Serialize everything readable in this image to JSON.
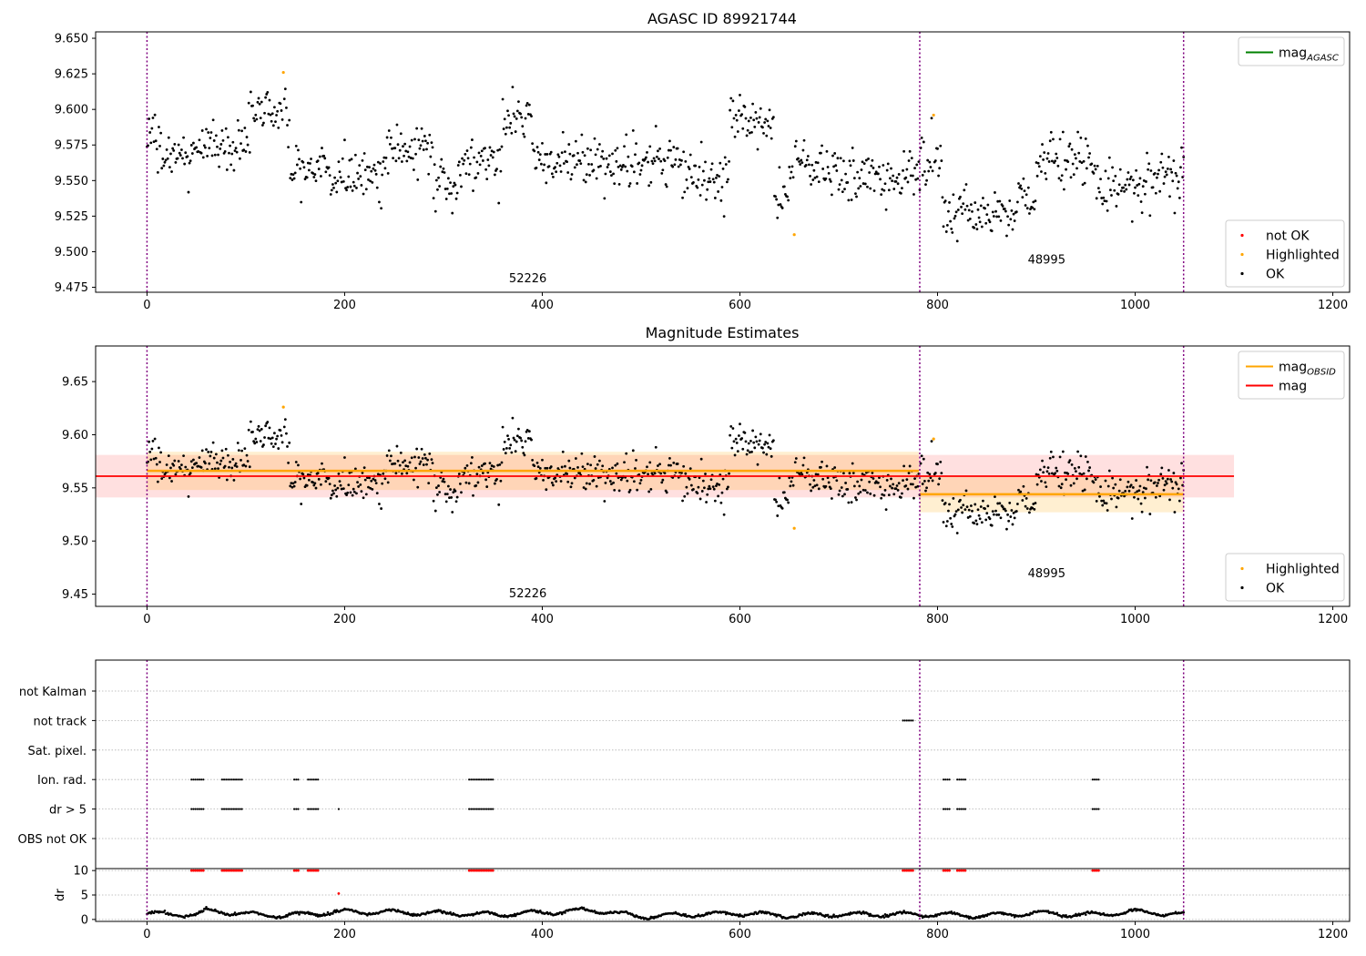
{
  "figure": {
    "obsid_boundaries_x": [
      0,
      782,
      1049
    ]
  },
  "chart_data": [
    {
      "type": "scatter",
      "title": "AGASC ID 89921744",
      "xlabel": "",
      "ylabel": "",
      "xlim": [
        -52,
        1217
      ],
      "ylim": [
        9.4715,
        9.6545
      ],
      "xticks": [
        0,
        200,
        400,
        600,
        800,
        1000,
        1200
      ],
      "yticks": [
        9.475,
        9.5,
        9.525,
        9.55,
        9.575,
        9.6,
        9.625,
        9.65
      ],
      "ytick_decimals": 3,
      "legends": [
        {
          "position": "top-right",
          "entries": [
            {
              "label": "mag",
              "sub": "AGASC",
              "kind": "line",
              "color": "#008000"
            }
          ]
        },
        {
          "position": "bottom-right",
          "entries": [
            {
              "label": "not OK",
              "kind": "dot",
              "color": "#ff0000"
            },
            {
              "label": "Highlighted",
              "kind": "dot",
              "color": "#ffa500"
            },
            {
              "label": "OK",
              "kind": "dot",
              "color": "#000000"
            }
          ]
        }
      ],
      "annotations": [
        {
          "text": "52226",
          "x": 390,
          "y": 9.4785
        },
        {
          "text": "48995",
          "x": 915,
          "y": 9.4915
        }
      ],
      "obsids": [
        {
          "label": "52226",
          "start": 0,
          "end": 781,
          "segments": [
            {
              "x0": 0,
              "x1": 10,
              "mean": 9.58
            },
            {
              "x0": 10,
              "x1": 55,
              "mean": 9.568
            },
            {
              "x0": 55,
              "x1": 105,
              "mean": 9.575
            },
            {
              "x0": 105,
              "x1": 145,
              "mean": 9.598
            },
            {
              "x0": 145,
              "x1": 185,
              "mean": 9.558
            },
            {
              "x0": 185,
              "x1": 240,
              "mean": 9.553
            },
            {
              "x0": 240,
              "x1": 290,
              "mean": 9.572
            },
            {
              "x0": 290,
              "x1": 320,
              "mean": 9.547
            },
            {
              "x0": 320,
              "x1": 360,
              "mean": 9.563
            },
            {
              "x0": 360,
              "x1": 390,
              "mean": 9.593
            },
            {
              "x0": 390,
              "x1": 460,
              "mean": 9.563
            },
            {
              "x0": 460,
              "x1": 510,
              "mean": 9.562
            },
            {
              "x0": 510,
              "x1": 550,
              "mean": 9.562
            },
            {
              "x0": 550,
              "x1": 590,
              "mean": 9.553
            },
            {
              "x0": 590,
              "x1": 635,
              "mean": 9.59
            },
            {
              "x0": 635,
              "x1": 650,
              "mean": 9.535
            },
            {
              "x0": 650,
              "x1": 700,
              "mean": 9.562
            },
            {
              "x0": 700,
              "x1": 781,
              "mean": 9.552
            }
          ]
        },
        {
          "label": "48995",
          "start": 782,
          "end": 1049,
          "segments": [
            {
              "x0": 782,
              "x1": 805,
              "mean": 9.562
            },
            {
              "x0": 805,
              "x1": 880,
              "mean": 9.528
            },
            {
              "x0": 880,
              "x1": 900,
              "mean": 9.538
            },
            {
              "x0": 900,
              "x1": 960,
              "mean": 9.562
            },
            {
              "x0": 960,
              "x1": 1010,
              "mean": 9.545
            },
            {
              "x0": 1010,
              "x1": 1049,
              "mean": 9.55
            }
          ]
        }
      ],
      "highlighted_points": [
        {
          "x": 138,
          "y": 9.626
        },
        {
          "x": 655,
          "y": 9.512
        },
        {
          "x": 796,
          "y": 9.596
        }
      ]
    },
    {
      "type": "scatter",
      "title": "Magnitude Estimates",
      "xlabel": "",
      "ylabel": "",
      "xlim": [
        -52,
        1217
      ],
      "ylim": [
        9.4385,
        9.6835
      ],
      "xticks": [
        0,
        200,
        400,
        600,
        800,
        1000,
        1200
      ],
      "yticks": [
        9.45,
        9.5,
        9.55,
        9.6,
        9.65
      ],
      "ytick_decimals": 2,
      "legends": [
        {
          "position": "top-right",
          "entries": [
            {
              "label": "mag",
              "sub": "OBSID",
              "kind": "line",
              "color": "#ffa500"
            },
            {
              "label": "mag",
              "kind": "line",
              "color": "#ff0000"
            }
          ]
        },
        {
          "position": "bottom-right",
          "entries": [
            {
              "label": "Highlighted",
              "kind": "dot",
              "color": "#ffa500"
            },
            {
              "label": "OK",
              "kind": "dot",
              "color": "#000000"
            }
          ]
        }
      ],
      "annotations": [
        {
          "text": "52226",
          "x": 390,
          "y": 9.447
        },
        {
          "text": "48995",
          "x": 915,
          "y": 9.466
        }
      ],
      "overall_mag": {
        "value": 9.561,
        "band": [
          9.541,
          9.581
        ],
        "x_range": [
          -52,
          1100
        ],
        "color": "#ff0000"
      },
      "obsid_mags": [
        {
          "x_range": [
            0,
            781
          ],
          "value": 9.566,
          "band": [
            9.548,
            9.584
          ]
        },
        {
          "x_range": [
            782,
            1049
          ],
          "value": 9.544,
          "band": [
            9.527,
            9.561
          ]
        }
      ]
    },
    {
      "type": "scatter",
      "title": "",
      "xlabel": "",
      "ylabel": "",
      "categories": [
        "not Kalman",
        "not track",
        "Sat. pixel.",
        "Ion. rad.",
        "dr > 5",
        "OBS not OK"
      ],
      "xlim": [
        -52,
        1217
      ],
      "xticks": [
        0,
        200,
        400,
        600,
        800,
        1000,
        1200
      ],
      "flag_runs": {
        "not Kalman": [],
        "not track": [
          [
            765,
            776
          ]
        ],
        "Sat. pixel.": [],
        "Ion. rad.": [
          [
            45,
            57
          ],
          [
            76,
            96
          ],
          [
            149,
            154
          ],
          [
            163,
            173
          ],
          [
            326,
            350
          ],
          [
            806,
            812
          ],
          [
            820,
            828
          ],
          [
            957,
            963
          ]
        ],
        "dr > 5": [
          [
            45,
            57
          ],
          [
            76,
            96
          ],
          [
            149,
            154
          ],
          [
            163,
            173
          ],
          [
            194,
            195
          ],
          [
            326,
            350
          ],
          [
            806,
            812
          ],
          [
            820,
            828
          ],
          [
            957,
            963
          ]
        ],
        "OBS not OK": []
      }
    },
    {
      "type": "scatter",
      "title": "",
      "xlabel": "",
      "ylabel": "dr",
      "xlim": [
        -52,
        1217
      ],
      "ylim": [
        -0.4,
        10.4
      ],
      "xticks": [
        0,
        200,
        400,
        600,
        800,
        1000,
        1200
      ],
      "yticks": [
        0,
        5,
        10
      ],
      "clipped_value": 10,
      "clipped_points_x": [
        [
          45,
          57
        ],
        [
          76,
          96
        ],
        [
          149,
          154
        ],
        [
          163,
          173
        ],
        [
          326,
          350
        ],
        [
          765,
          776
        ],
        [
          806,
          812
        ],
        [
          820,
          828
        ],
        [
          957,
          963
        ]
      ],
      "outlier_points": [
        {
          "x": 194,
          "y": 5.3
        }
      ],
      "dr_profile": [
        {
          "x": 0,
          "y": 1.2
        },
        {
          "x": 50,
          "y": 0.9
        },
        {
          "x": 60,
          "y": 1.8
        },
        {
          "x": 75,
          "y": 1.6
        },
        {
          "x": 100,
          "y": 1.1
        },
        {
          "x": 140,
          "y": 0.8
        },
        {
          "x": 200,
          "y": 1.6
        },
        {
          "x": 250,
          "y": 1.5
        },
        {
          "x": 300,
          "y": 1.2
        },
        {
          "x": 350,
          "y": 1.0
        },
        {
          "x": 400,
          "y": 1.4
        },
        {
          "x": 450,
          "y": 1.9
        },
        {
          "x": 500,
          "y": 0.6
        },
        {
          "x": 550,
          "y": 1.0
        },
        {
          "x": 600,
          "y": 1.3
        },
        {
          "x": 650,
          "y": 0.8
        },
        {
          "x": 700,
          "y": 1.0
        },
        {
          "x": 782,
          "y": 1.0
        },
        {
          "x": 850,
          "y": 0.8
        },
        {
          "x": 900,
          "y": 1.3
        },
        {
          "x": 950,
          "y": 0.9
        },
        {
          "x": 1000,
          "y": 1.6
        },
        {
          "x": 1049,
          "y": 1.0
        }
      ]
    }
  ]
}
